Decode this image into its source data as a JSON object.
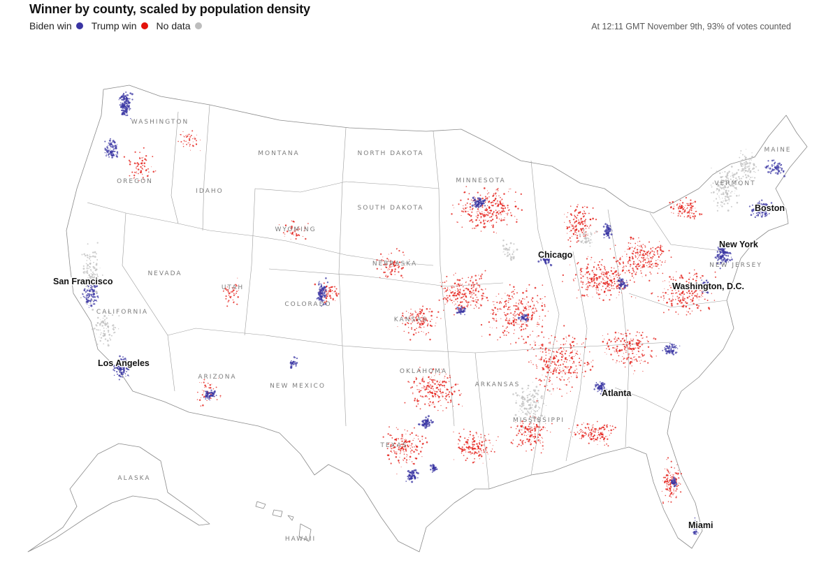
{
  "header": {
    "title": "Winner by county, scaled by population density",
    "timestamp": "At 12:11 GMT November 9th, 93% of votes counted"
  },
  "legend": [
    {
      "label": "Biden win",
      "color": "#3a35a3"
    },
    {
      "label": "Trump win",
      "color": "#e3120b"
    },
    {
      "label": "No data",
      "color": "#bdbdbd"
    }
  ],
  "map": {
    "state_labels": [
      "WASHINGTON",
      "OREGON",
      "IDAHO",
      "MONTANA",
      "NORTH DAKOTA",
      "SOUTH DAKOTA",
      "WYOMING",
      "NEVADA",
      "UTAH",
      "COLORADO",
      "CALIFORNIA",
      "NEBRASKA",
      "KANSAS",
      "ARIZONA",
      "NEW MEXICO",
      "OKLAHOMA",
      "TEXAS",
      "MINNESOTA",
      "ARKANSAS",
      "MISSISSIPPI",
      "VERMONT",
      "MAINE",
      "NEW JERSEY",
      "ALASKA",
      "HAWAII"
    ],
    "city_labels": [
      "San Francisco",
      "Los Angeles",
      "Chicago",
      "New York",
      "Boston",
      "Washington, D.C.",
      "Atlanta",
      "Miami"
    ]
  }
}
